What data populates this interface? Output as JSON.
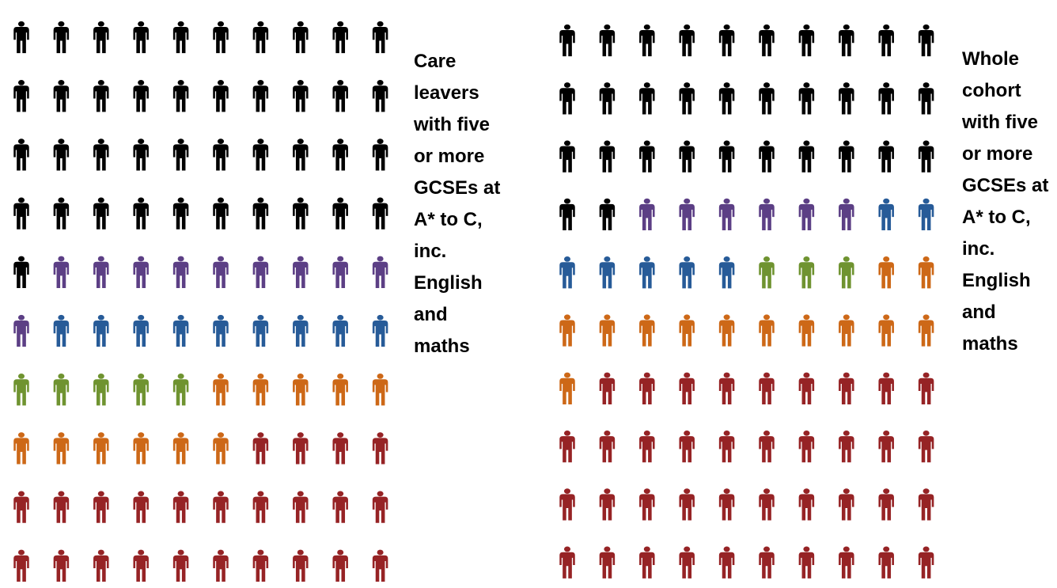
{
  "chart_data": [
    {
      "type": "pictogram",
      "label": "Care\nleavers\nwith five\nor more\nGCSEs at\nA* to C,\ninc.\nEnglish\nand\nmaths",
      "total": 100,
      "grid": {
        "rows": 10,
        "cols": 10
      },
      "groups": [
        {
          "color": "#000000",
          "count": 41
        },
        {
          "color": "#5c3f85",
          "count": 10
        },
        {
          "color": "#275b98",
          "count": 9
        },
        {
          "color": "#6f9330",
          "count": 5
        },
        {
          "color": "#cd6817",
          "count": 11
        },
        {
          "color": "#962325",
          "count": 24
        }
      ]
    },
    {
      "type": "pictogram",
      "label": "Whole\ncohort\nwith five\nor more\nGCSEs at\nA* to C,\ninc.\nEnglish\nand\nmaths",
      "total": 100,
      "grid": {
        "rows": 10,
        "cols": 10
      },
      "groups": [
        {
          "color": "#000000",
          "count": 32
        },
        {
          "color": "#5c3f85",
          "count": 6
        },
        {
          "color": "#275b98",
          "count": 7
        },
        {
          "color": "#6f9330",
          "count": 3
        },
        {
          "color": "#cd6817",
          "count": 13
        },
        {
          "color": "#962325",
          "count": 39
        }
      ]
    }
  ]
}
